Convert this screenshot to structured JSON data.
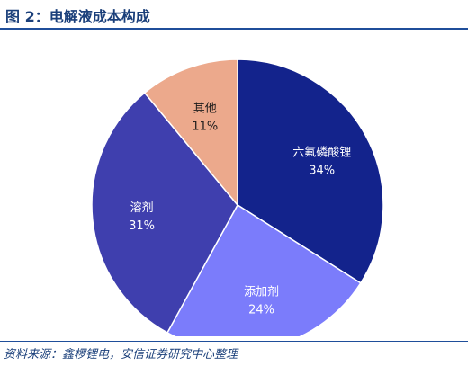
{
  "header": {
    "title": "图 2：电解液成本构成"
  },
  "chart_data": {
    "type": "pie",
    "title": "",
    "slices": [
      {
        "label": "六氟磷酸锂",
        "value": 34,
        "value_label": "34%",
        "color": "#13238c",
        "text_color": "#ffffff"
      },
      {
        "label": "添加剂",
        "value": 24,
        "value_label": "24%",
        "color": "#7b7cfb",
        "text_color": "#ffffff"
      },
      {
        "label": "溶剂",
        "value": 31,
        "value_label": "31%",
        "color": "#3f3fae",
        "text_color": "#ffffff"
      },
      {
        "label": "其他",
        "value": 11,
        "value_label": "11%",
        "color": "#eca98c",
        "text_color": "#1a1a1a"
      }
    ],
    "start": "12 o'clock",
    "direction": "clockwise",
    "legend": "none"
  },
  "footer": {
    "source": "资料来源：鑫椤锂电，安信证券研究中心整理"
  }
}
